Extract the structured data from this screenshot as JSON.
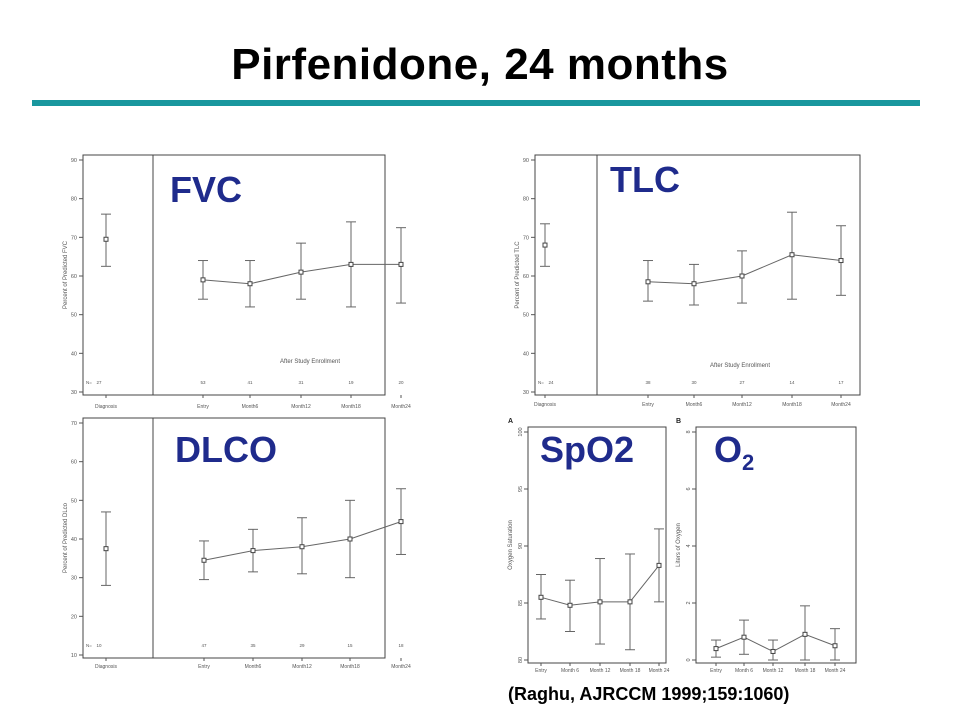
{
  "slide": {
    "title": "Pirfenidone, 24 months",
    "citation": "(Raghu, AJRCCM 1999;159:1060)",
    "accent_color": "#19979e",
    "label_color": "#1f2b8c"
  },
  "labels": {
    "fvc": "FVC",
    "tlc": "TLC",
    "dlco": "DLCO",
    "spo2": "SpO2",
    "o2": "O",
    "o2_sub": "2"
  },
  "chart_data": [
    {
      "id": "fvc",
      "type": "line",
      "ylabel": "Percent of Predicted FVC",
      "ylim": [
        30,
        90
      ],
      "yticks": [
        30,
        40,
        50,
        60,
        70,
        80,
        90
      ],
      "categories": [
        "Diagnosis",
        "Entry",
        "Month6",
        "Month12",
        "Month18",
        "Month24"
      ],
      "n_label": "N=",
      "n_values": [
        "27",
        "53",
        "41",
        "31",
        "19",
        "20"
      ],
      "annotation": "After Study Enrollment",
      "values": [
        69.5,
        59,
        58,
        61,
        63,
        63
      ],
      "lower": [
        62.5,
        54,
        52,
        54,
        52,
        53
      ],
      "upper": [
        76,
        64,
        64,
        68.5,
        74,
        72.5
      ]
    },
    {
      "id": "tlc",
      "type": "line",
      "ylabel": "Percent of Predicted TLC",
      "ylim": [
        30,
        90
      ],
      "yticks": [
        30,
        40,
        50,
        60,
        70,
        80,
        90
      ],
      "categories": [
        "Diagnosis",
        "Entry",
        "Month6",
        "Month12",
        "Month18",
        "Month24"
      ],
      "n_label": "N=",
      "n_values": [
        "24",
        "38",
        "30",
        "27",
        "14",
        "17"
      ],
      "annotation": "After Study Enrollment",
      "values": [
        68,
        58.5,
        58,
        60,
        65.5,
        64
      ],
      "lower": [
        62.5,
        53.5,
        52.5,
        53,
        54,
        55
      ],
      "upper": [
        73.5,
        64,
        63,
        66.5,
        76.5,
        73
      ]
    },
    {
      "id": "dlco",
      "type": "line",
      "ylabel": "Percent of Predicted DLco",
      "ylim": [
        10,
        70
      ],
      "yticks": [
        10,
        20,
        30,
        40,
        50,
        60,
        70
      ],
      "categories": [
        "Diagnosis",
        "Entry",
        "Month6",
        "Month12",
        "Month18",
        "Month24"
      ],
      "n_label": "N=",
      "n_values": [
        "10",
        "47",
        "35",
        "29",
        "15",
        "18"
      ],
      "annotation": "",
      "values": [
        37.5,
        34.5,
        37,
        38,
        40,
        44.5
      ],
      "lower": [
        28,
        29.5,
        31.5,
        31,
        30,
        36
      ],
      "upper": [
        47,
        39.5,
        42.5,
        45.5,
        50,
        53
      ]
    },
    {
      "id": "spo2",
      "type": "line",
      "panel_letter": "A",
      "ylabel": "Oxygen Saturation",
      "ylim": [
        80,
        100
      ],
      "yticks": [
        80,
        85,
        90,
        95,
        100
      ],
      "categories": [
        "Entry",
        "Month 6",
        "Month 12",
        "Month 18",
        "Month 24"
      ],
      "values": [
        85.5,
        84.8,
        85.1,
        85.1,
        88.3
      ],
      "lower": [
        83.6,
        82.5,
        81.4,
        80.9,
        85.1
      ],
      "upper": [
        87.5,
        87,
        88.9,
        89.3,
        91.5
      ]
    },
    {
      "id": "o2",
      "type": "line",
      "panel_letter": "B",
      "ylabel": "Liters of Oxygen",
      "ylim": [
        0,
        8
      ],
      "yticks": [
        0,
        2,
        4,
        6,
        8
      ],
      "categories": [
        "Entry",
        "Month 6",
        "Month 12",
        "Month 18",
        "Month 24"
      ],
      "values": [
        0.4,
        0.8,
        0.3,
        0.9,
        0.5
      ],
      "lower": [
        0.1,
        0.2,
        0,
        0,
        0
      ],
      "upper": [
        0.7,
        1.4,
        0.7,
        1.9,
        1.1
      ]
    }
  ]
}
